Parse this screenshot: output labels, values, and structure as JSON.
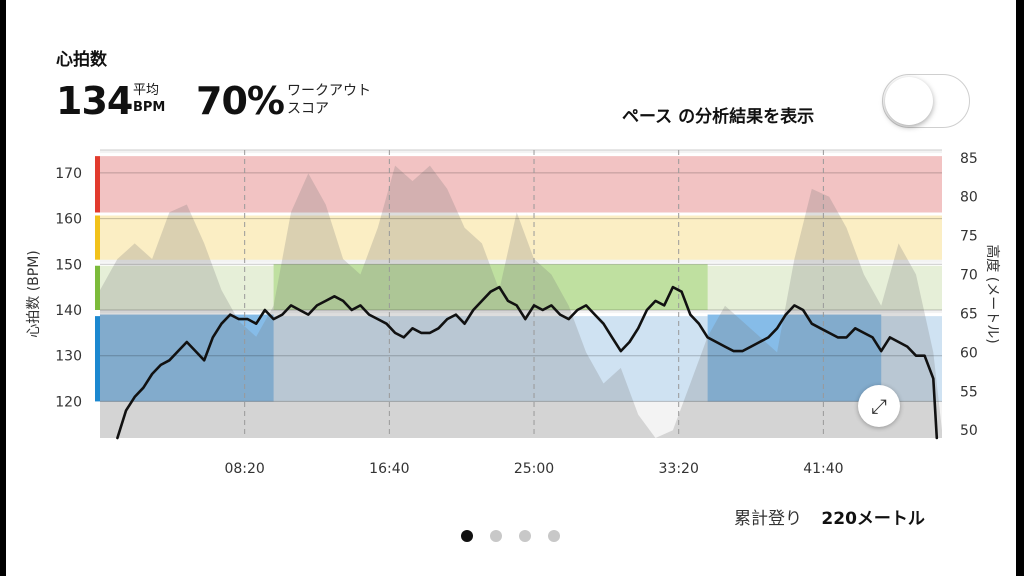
{
  "header": {
    "title": "心拍数",
    "avg_value": "134",
    "avg_label": "平均",
    "avg_unit": "BPM",
    "score_value": "70%",
    "score_label_line1": "ワークアウト",
    "score_label_line2": "スコア"
  },
  "pace_toggle": {
    "label": "ペース の分析結果を表示",
    "on": false
  },
  "footer": {
    "ascent_label": "累計登り",
    "ascent_value": "220メートル"
  },
  "pagination": {
    "count": 4,
    "active": 0
  },
  "chart_data": {
    "type": "line",
    "ylabel": "心拍数 (BPM)",
    "y2label": "高度 (メートル)",
    "yticks": [
      120,
      130,
      140,
      150,
      160,
      170
    ],
    "y2ticks": [
      50,
      55,
      60,
      65,
      70,
      75,
      80,
      85
    ],
    "xticks": [
      "08:20",
      "16:40",
      "25:00",
      "33:20",
      "41:40"
    ],
    "xtick_minutes": [
      8.333,
      16.667,
      25,
      33.333,
      41.667
    ],
    "x_range_minutes": [
      0,
      48.5
    ],
    "ylim": [
      112,
      175
    ],
    "y2lim": [
      49,
      86
    ],
    "zones": [
      {
        "name": "zone5",
        "min": 161,
        "max": 174,
        "color": "#f2c3c3",
        "bar": "#e23b2e"
      },
      {
        "name": "zone4",
        "min": 151,
        "max": 161,
        "color": "#fbeec4",
        "bar": "#f2c21b"
      },
      {
        "name": "zone3",
        "min": 140,
        "max": 150,
        "color": "#e6efd8",
        "bar": "#7cbb3b"
      },
      {
        "name": "zone2",
        "min": 120,
        "max": 139,
        "color": "#cfe2f2",
        "bar": "#1c88d0"
      }
    ],
    "time_in_zone": [
      {
        "zone": "zone3",
        "start_min": 10,
        "end_min": 35,
        "color": "#bfe0a0"
      },
      {
        "zone": "zone2",
        "start_min": 0,
        "end_min": 10,
        "color": "#86bce8"
      },
      {
        "zone": "zone2",
        "start_min": 35,
        "end_min": 45,
        "color": "#86bce8"
      }
    ],
    "hr_series": {
      "name": "心拍数",
      "x": [
        1,
        1.5,
        2,
        2.5,
        3,
        3.5,
        4,
        4.5,
        5,
        5.5,
        6,
        6.5,
        7,
        7.5,
        8,
        8.5,
        9,
        9.5,
        10,
        10.5,
        11,
        11.5,
        12,
        12.5,
        13,
        13.5,
        14,
        14.5,
        15,
        15.5,
        16,
        16.5,
        17,
        17.5,
        18,
        18.5,
        19,
        19.5,
        20,
        20.5,
        21,
        21.5,
        22,
        22.5,
        23,
        23.5,
        24,
        24.5,
        25,
        25.5,
        26,
        26.5,
        27,
        27.5,
        28,
        28.5,
        29,
        29.5,
        30,
        30.5,
        31,
        31.5,
        32,
        32.5,
        33,
        33.5,
        34,
        34.5,
        35,
        35.5,
        36,
        36.5,
        37,
        37.5,
        38,
        38.5,
        39,
        39.5,
        40,
        40.5,
        41,
        41.5,
        42,
        42.5,
        43,
        43.5,
        44,
        44.5,
        45,
        45.5,
        46,
        46.5,
        47,
        47.5,
        48,
        48.2
      ],
      "y": [
        112,
        118,
        121,
        123,
        126,
        128,
        129,
        131,
        133,
        131,
        129,
        134,
        137,
        139,
        138,
        138,
        137,
        140,
        138,
        139,
        141,
        140,
        139,
        141,
        142,
        143,
        142,
        140,
        141,
        139,
        138,
        137,
        135,
        134,
        136,
        135,
        135,
        136,
        138,
        139,
        137,
        140,
        142,
        144,
        145,
        142,
        141,
        138,
        141,
        140,
        141,
        139,
        138,
        140,
        141,
        139,
        137,
        134,
        131,
        133,
        136,
        140,
        142,
        141,
        145,
        144,
        139,
        137,
        134,
        133,
        132,
        131,
        131,
        132,
        133,
        134,
        136,
        139,
        141,
        140,
        137,
        136,
        135,
        134,
        134,
        136,
        135,
        134,
        131,
        134,
        133,
        132,
        130,
        130,
        125,
        112
      ]
    },
    "altitude_series": {
      "name": "高度",
      "x": [
        0,
        1,
        2,
        3,
        4,
        5,
        6,
        7,
        8,
        9,
        10,
        11,
        12,
        13,
        14,
        15,
        16,
        17,
        18,
        19,
        20,
        21,
        22,
        23,
        24,
        25,
        26,
        27,
        28,
        29,
        30,
        31,
        32,
        33,
        34,
        35,
        36,
        37,
        38,
        39,
        40,
        41,
        42,
        43,
        44,
        45,
        46,
        47,
        48,
        48.5
      ],
      "y": [
        68,
        72,
        74,
        72,
        78,
        79,
        74,
        68,
        64,
        62,
        66,
        78,
        83,
        79,
        72,
        70,
        76,
        84,
        82,
        84,
        81,
        76,
        74,
        68,
        78,
        72,
        70,
        66,
        60,
        56,
        58,
        52,
        49,
        50,
        56,
        62,
        66,
        64,
        62,
        60,
        72,
        81,
        80,
        76,
        70,
        66,
        74,
        70,
        60,
        50
      ]
    }
  }
}
